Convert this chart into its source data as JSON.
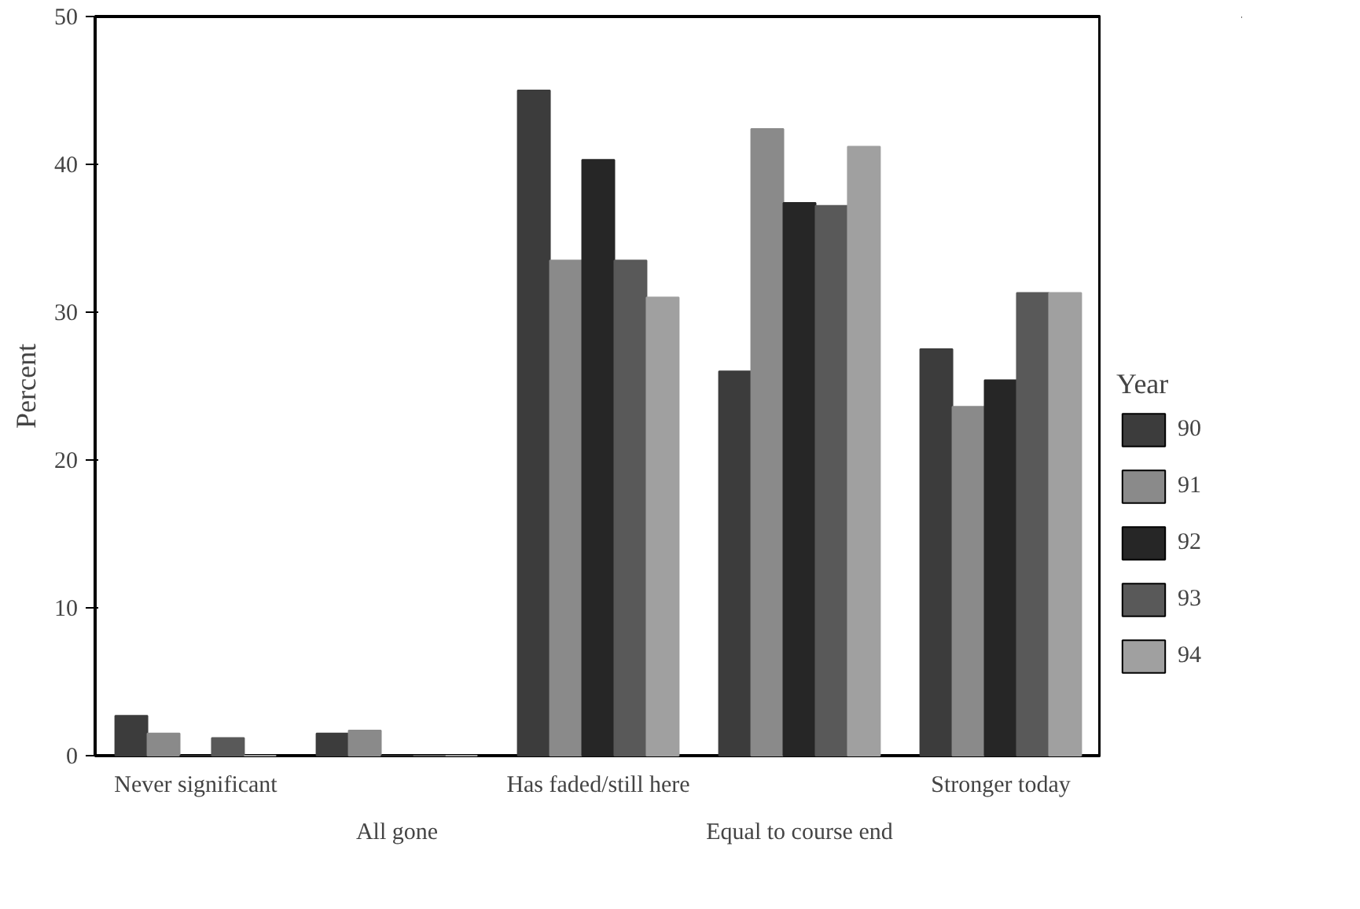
{
  "chart_data": {
    "type": "bar",
    "ylabel": "Percent",
    "legend_title": "Year",
    "legend": "right",
    "categories": [
      "Never significant",
      "All gone",
      "Has faded/still here",
      "Equal to course end",
      "Stronger today"
    ],
    "series": [
      {
        "name": "90",
        "color": "#3c3c3c",
        "values": [
          2.7,
          1.5,
          45,
          26,
          27.5
        ]
      },
      {
        "name": "91",
        "color": "#8a8a8a",
        "values": [
          1.5,
          1.7,
          33.5,
          42.4,
          23.6
        ]
      },
      {
        "name": "92",
        "color": "#262626",
        "values": [
          0,
          0,
          40.3,
          37.4,
          25.4
        ]
      },
      {
        "name": "93",
        "color": "#595959",
        "values": [
          1.2,
          0,
          33.5,
          37.2,
          31.3
        ]
      },
      {
        "name": "94",
        "color": "#a0a0a0",
        "values": [
          0,
          0,
          31,
          41.2,
          31.3
        ]
      }
    ],
    "ylim": [
      0,
      50
    ],
    "yticks": [
      0,
      10,
      20,
      30,
      40,
      50
    ],
    "grid": false
  }
}
